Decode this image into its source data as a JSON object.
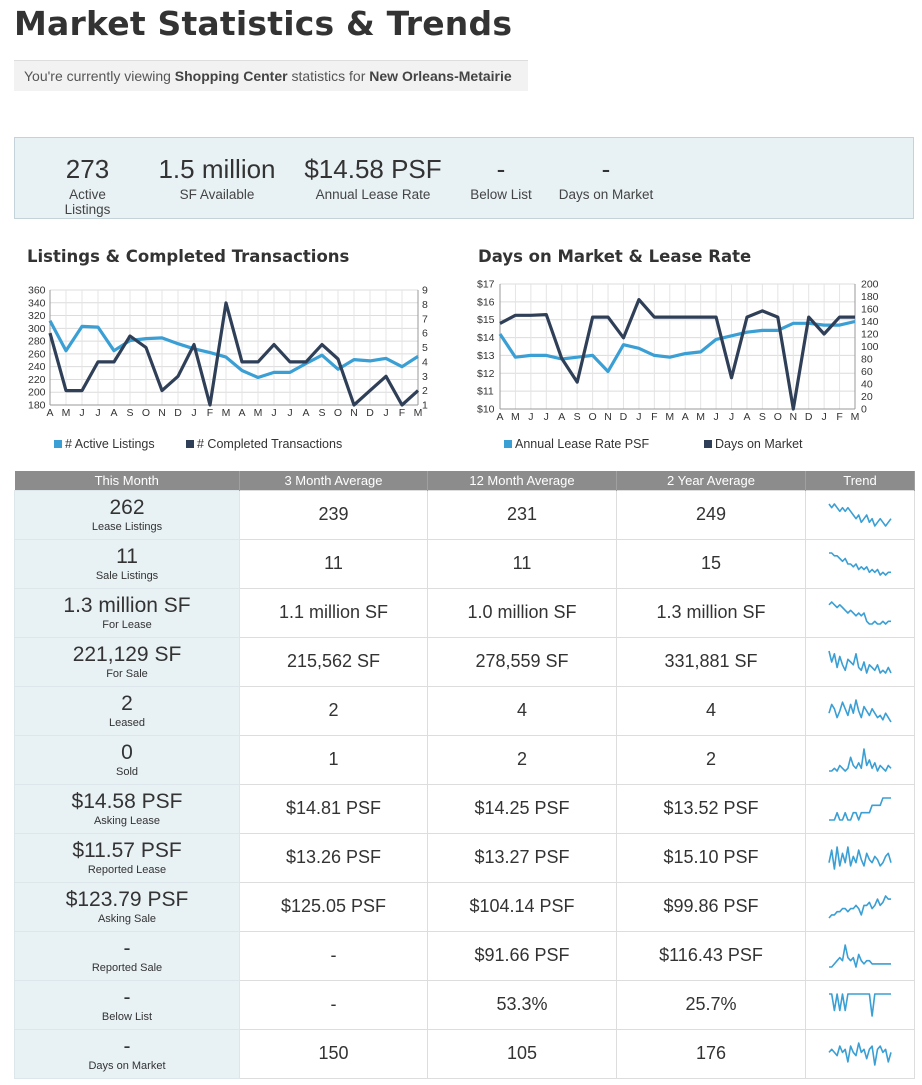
{
  "page": {
    "title": "Market Statistics & Trends",
    "subtitle": {
      "prefix": "You're currently viewing",
      "property_type": "Shopping Center",
      "middle": "statistics for",
      "market": "New Orleans-Metairie"
    }
  },
  "summary": [
    {
      "value": "273",
      "label": "Active Listings"
    },
    {
      "value": "1.5 million",
      "label": "SF Available"
    },
    {
      "value": "$14.58 PSF",
      "label": "Annual Lease Rate"
    },
    {
      "value": "-",
      "label": "Below List"
    },
    {
      "value": "-",
      "label": "Days on Market"
    }
  ],
  "colors": {
    "light_blue": "#3a9fd4",
    "dark_navy": "#2f3f58",
    "header_gray": "#8c8c8c",
    "panel_bg": "#e8f1f4"
  },
  "chart_data": [
    {
      "type": "line",
      "title": "Listings & Completed Transactions",
      "x": [
        "A",
        "M",
        "J",
        "J",
        "A",
        "S",
        "O",
        "N",
        "D",
        "J",
        "F",
        "M",
        "A",
        "M",
        "J",
        "J",
        "A",
        "S",
        "O",
        "N",
        "D",
        "J",
        "F",
        "M"
      ],
      "y_left_ticks": [
        "360",
        "340",
        "320",
        "300",
        "280",
        "260",
        "240",
        "220",
        "200",
        "180"
      ],
      "y_right_ticks": [
        "9",
        "8",
        "7",
        "6",
        "5",
        "4",
        "3",
        "2",
        "1"
      ],
      "ylim_left": [
        180,
        360
      ],
      "ylim_right": [
        1,
        9
      ],
      "series": [
        {
          "name": "# Active Listings",
          "axis": "left",
          "color": "#3a9fd4",
          "values": [
            312,
            265,
            303,
            302,
            265,
            281,
            284,
            285,
            276,
            268,
            262,
            255,
            234,
            223,
            231,
            231,
            245,
            258,
            236,
            251,
            249,
            253,
            240,
            256
          ]
        },
        {
          "name": "# Completed Transactions",
          "axis": "right",
          "color": "#2f3f58",
          "values": [
            6.0,
            2.0,
            2.0,
            4.0,
            4.0,
            5.8,
            5.0,
            2.0,
            3.0,
            5.2,
            1.0,
            8.1,
            4.0,
            4.0,
            5.2,
            4.0,
            4.0,
            5.2,
            4.2,
            1.0,
            2.0,
            3.0,
            1.0,
            2.0
          ]
        }
      ],
      "legend_position": "bottom",
      "grid": true
    },
    {
      "type": "line",
      "title": "Days on Market & Lease Rate",
      "x": [
        "A",
        "M",
        "J",
        "J",
        "A",
        "S",
        "O",
        "N",
        "D",
        "J",
        "F",
        "M",
        "A",
        "M",
        "J",
        "J",
        "A",
        "S",
        "O",
        "N",
        "D",
        "J",
        "F",
        "M"
      ],
      "y_left_ticks": [
        "$17",
        "$16",
        "$15",
        "$14",
        "$13",
        "$12",
        "$11",
        "$10"
      ],
      "y_right_ticks": [
        "200",
        "180",
        "160",
        "140",
        "120",
        "100",
        "80",
        "60",
        "40",
        "20",
        "0"
      ],
      "ylim_left": [
        10,
        17
      ],
      "ylim_right": [
        0,
        200
      ],
      "series": [
        {
          "name": "Annual Lease Rate PSF",
          "axis": "left",
          "color": "#3a9fd4",
          "values": [
            14.2,
            12.9,
            13.0,
            13.0,
            12.8,
            12.9,
            13.0,
            12.1,
            13.6,
            13.4,
            13.0,
            12.9,
            13.1,
            13.2,
            13.9,
            14.1,
            14.3,
            14.4,
            14.4,
            14.8,
            14.8,
            14.7,
            14.7,
            14.9
          ]
        },
        {
          "name": "Days on Market",
          "axis": "right",
          "color": "#2f3f58",
          "values": [
            137,
            150,
            150,
            151,
            81,
            43,
            147,
            147,
            114,
            175,
            147,
            147,
            147,
            147,
            147,
            50,
            147,
            157,
            147,
            0,
            147,
            120,
            147,
            147
          ]
        }
      ],
      "legend_position": "bottom",
      "grid": true
    }
  ],
  "table": {
    "headers": [
      "This Month",
      "3 Month Average",
      "12 Month Average",
      "2 Year Average",
      "Trend"
    ],
    "rows": [
      {
        "value": "262",
        "label": "Lease Listings",
        "m3": "239",
        "m12": "231",
        "y2": "249",
        "trend": [
          10,
          9,
          10,
          9,
          8,
          9,
          8,
          9,
          8,
          7,
          6,
          7,
          5,
          6,
          7,
          5,
          6,
          4,
          5,
          6,
          5,
          4,
          5,
          6
        ]
      },
      {
        "value": "11",
        "label": "Sale Listings",
        "m3": "11",
        "m12": "11",
        "y2": "15",
        "trend": [
          10,
          10,
          9,
          9,
          8,
          7,
          8,
          6,
          6,
          5,
          6,
          4,
          5,
          4,
          5,
          3,
          4,
          3,
          4,
          2,
          3,
          2,
          3,
          3
        ]
      },
      {
        "value": "1.3 million SF",
        "label": "For Lease",
        "m3": "1.1 million SF",
        "m12": "1.0 million SF",
        "y2": "1.3 million SF",
        "trend": [
          9,
          10,
          9,
          8,
          9,
          8,
          7,
          6,
          7,
          6,
          5,
          6,
          5,
          6,
          3,
          2,
          2,
          3,
          2,
          2,
          3,
          2,
          3,
          3
        ]
      },
      {
        "value": "221,129 SF",
        "label": "For Sale",
        "m3": "215,562 SF",
        "m12": "278,559 SF",
        "y2": "331,881 SF",
        "trend": [
          10,
          6,
          9,
          4,
          8,
          5,
          3,
          7,
          6,
          5,
          9,
          4,
          3,
          6,
          2,
          5,
          4,
          3,
          5,
          2,
          3,
          2,
          4,
          2
        ]
      },
      {
        "value": "2",
        "label": "Leased",
        "m3": "2",
        "m12": "4",
        "y2": "4",
        "trend": [
          5,
          9,
          7,
          3,
          6,
          10,
          7,
          4,
          9,
          5,
          11,
          6,
          3,
          8,
          6,
          4,
          7,
          5,
          3,
          4,
          2,
          5,
          3,
          1
        ]
      },
      {
        "value": "0",
        "label": "Sold",
        "m3": "1",
        "m12": "2",
        "y2": "2",
        "trend": [
          3,
          3,
          4,
          3,
          5,
          4,
          3,
          4,
          8,
          5,
          4,
          6,
          4,
          11,
          5,
          7,
          4,
          6,
          3,
          5,
          4,
          3,
          5,
          4
        ]
      },
      {
        "value": "$14.58 PSF",
        "label": "Asking Lease",
        "m3": "$14.81 PSF",
        "m12": "$14.25 PSF",
        "y2": "$13.52 PSF",
        "trend": [
          3,
          3,
          3,
          4,
          3,
          3,
          4,
          3,
          3,
          4,
          4,
          3,
          4,
          4,
          4,
          4,
          5,
          5,
          5,
          5,
          6,
          6,
          6,
          6
        ]
      },
      {
        "value": "$11.57 PSF",
        "label": "Reported Lease",
        "m3": "$13.26 PSF",
        "m12": "$13.27 PSF",
        "y2": "$15.10 PSF",
        "trend": [
          4,
          8,
          2,
          9,
          3,
          7,
          4,
          9,
          3,
          6,
          4,
          8,
          5,
          3,
          7,
          5,
          4,
          6,
          5,
          3,
          4,
          6,
          7,
          4
        ]
      },
      {
        "value": "$123.79 PSF",
        "label": "Asking Sale",
        "m3": "$125.05 PSF",
        "m12": "$104.14 PSF",
        "y2": "$99.86 PSF",
        "trend": [
          2,
          3,
          3,
          4,
          4,
          5,
          5,
          4,
          5,
          5,
          6,
          5,
          3,
          6,
          6,
          7,
          5,
          6,
          8,
          6,
          7,
          9,
          8,
          8
        ]
      },
      {
        "value": "-",
        "label": "Reported Sale",
        "m3": "-",
        "m12": "$91.66 PSF",
        "y2": "$116.43 PSF",
        "trend": [
          3,
          3,
          4,
          5,
          6,
          5,
          10,
          6,
          5,
          6,
          3,
          7,
          5,
          4,
          5,
          5,
          4,
          4,
          4,
          4,
          4,
          4,
          4,
          4
        ]
      },
      {
        "value": "-",
        "label": "Below List",
        "m3": "-",
        "m12": "53.3%",
        "y2": "25.7%",
        "trend": [
          8,
          8,
          2,
          8,
          2,
          8,
          2,
          8,
          8,
          8,
          8,
          8,
          8,
          8,
          8,
          8,
          0,
          8,
          8,
          8,
          8,
          8,
          8,
          8
        ]
      },
      {
        "value": "-",
        "label": "Days on Market",
        "m3": "150",
        "m12": "105",
        "y2": "176",
        "trend": [
          5,
          6,
          5,
          4,
          7,
          5,
          6,
          2,
          7,
          5,
          4,
          8,
          5,
          6,
          3,
          6,
          7,
          1,
          6,
          7,
          5,
          6,
          2,
          5
        ]
      }
    ]
  }
}
